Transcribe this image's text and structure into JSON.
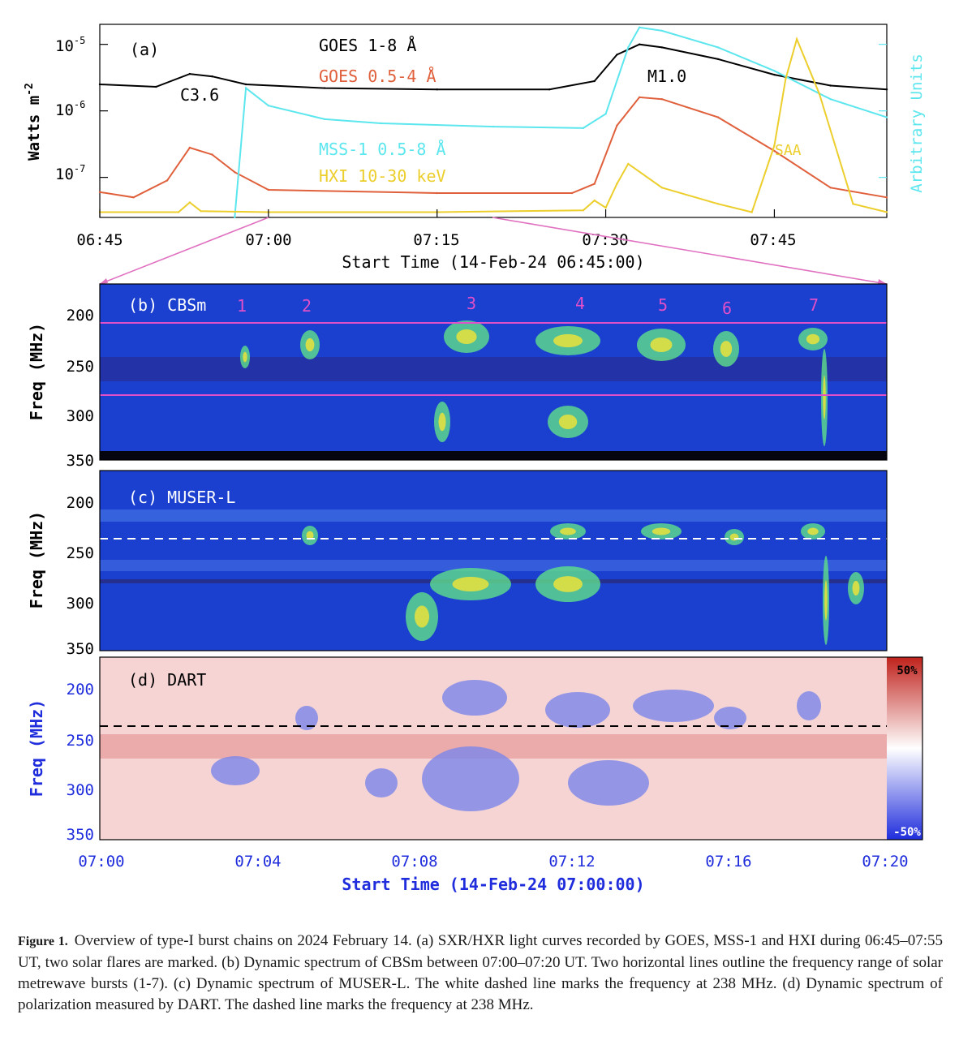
{
  "panel_a": {
    "label": "(a)",
    "ylabel": "Watts m",
    "ylabel_sup": "-2",
    "yright_label": "Arbitrary Units",
    "yticks": [
      {
        "base": "10",
        "exp": "-5"
      },
      {
        "base": "10",
        "exp": "-6"
      },
      {
        "base": "10",
        "exp": "-7"
      }
    ],
    "xticks": [
      "06:45",
      "07:00",
      "07:15",
      "07:30",
      "07:45"
    ],
    "xlabel": "Start Time (14-Feb-24 06:45:00)",
    "legend": [
      {
        "text": "GOES 1-8 Å",
        "color": "#000000"
      },
      {
        "text": "GOES 0.5-4 Å",
        "color": "#e0603c"
      },
      {
        "text": "MSS-1 0.5-8 Å",
        "color": "#5ce6ee"
      },
      {
        "text": "HXI 10-30 keV",
        "color": "#ecce2c"
      }
    ],
    "annotations": {
      "flare1": "C3.6",
      "flare2": "M1.0",
      "saa": "SAA"
    }
  },
  "chart_data": {
    "type": "line",
    "title": "",
    "xlabel": "Start Time (14-Feb-24 06:45:00)",
    "ylabel": "Watts m^-2",
    "ylog": true,
    "ylim": [
      2.5e-08,
      2e-05
    ],
    "xlim": [
      "06:45",
      "07:55"
    ],
    "series": [
      {
        "name": "GOES 1-8 Å",
        "color": "#000000",
        "x": [
          "06:45",
          "06:50",
          "06:53",
          "06:55",
          "06:58",
          "07:05",
          "07:15",
          "07:25",
          "07:29",
          "07:31",
          "07:33",
          "07:35",
          "07:40",
          "07:45",
          "07:50",
          "07:55"
        ],
        "values": [
          2.5e-06,
          2.3e-06,
          3.6e-06,
          3.3e-06,
          2.5e-06,
          2.2e-06,
          2.1e-06,
          2.1e-06,
          2.8e-06,
          7e-06,
          1e-05,
          9e-06,
          6e-06,
          3.5e-06,
          2.4e-06,
          2.1e-06
        ]
      },
      {
        "name": "GOES 0.5-4 Å",
        "color": "#e0603c",
        "x": [
          "06:45",
          "06:48",
          "06:51",
          "06:53",
          "06:55",
          "06:57",
          "07:00",
          "07:15",
          "07:27",
          "07:29",
          "07:31",
          "07:33",
          "07:35",
          "07:40",
          "07:45",
          "07:50",
          "07:55"
        ],
        "values": [
          6e-08,
          5e-08,
          9e-08,
          2.8e-07,
          2.2e-07,
          1.2e-07,
          6.5e-08,
          5.8e-08,
          5.8e-08,
          8e-08,
          6e-07,
          1.6e-06,
          1.5e-06,
          8e-07,
          2.5e-07,
          7e-08,
          5e-08
        ]
      },
      {
        "name": "MSS-1 0.5-8 Å",
        "color": "#5ce6ee",
        "x": [
          "06:57",
          "06:58",
          "07:00",
          "07:05",
          "07:10",
          "07:20",
          "07:28",
          "07:30",
          "07:32",
          "07:33",
          "07:35",
          "07:40",
          "07:45",
          "07:50",
          "07:55"
        ],
        "values": [
          2.5e-08,
          2.2e-06,
          1.2e-06,
          7.5e-07,
          6.5e-07,
          5.8e-07,
          5.5e-07,
          9e-07,
          9e-06,
          1.8e-05,
          1.6e-05,
          9e-06,
          4e-06,
          1.5e-06,
          8e-07
        ]
      },
      {
        "name": "HXI 10-30 keV",
        "color": "#ecce2c",
        "x": [
          "06:45",
          "06:52",
          "06:53",
          "06:54",
          "07:00",
          "07:15",
          "07:28",
          "07:29",
          "07:30",
          "07:31",
          "07:32",
          "07:35",
          "07:40",
          "07:43",
          "07:45",
          "07:46",
          "07:47",
          "07:49",
          "07:52",
          "07:55"
        ],
        "values": [
          3e-08,
          3e-08,
          4.2e-08,
          3.1e-08,
          3e-08,
          3e-08,
          3.2e-08,
          4.5e-08,
          3.5e-08,
          8e-08,
          1.6e-07,
          7e-08,
          4e-08,
          3e-08,
          3e-07,
          3e-06,
          1.2e-05,
          1.8e-06,
          4e-08,
          3e-08
        ]
      }
    ]
  },
  "panel_b": {
    "label": "(b) CBSm",
    "burst_numbers": [
      "1",
      "2",
      "3",
      "4",
      "5",
      "6",
      "7"
    ]
  },
  "panel_c": {
    "label": "(c) MUSER-L"
  },
  "panel_d": {
    "label": "(d) DART",
    "colorbar_top": "50%",
    "colorbar_bottom": "-50%"
  },
  "spectra": {
    "ylabel": "Freq (MHz)",
    "yticks": [
      "200",
      "250",
      "300",
      "350"
    ],
    "xticks": [
      "07:00",
      "07:04",
      "07:08",
      "07:12",
      "07:16",
      "07:20"
    ],
    "xlabel": "Start Time (14-Feb-24 07:00:00)"
  },
  "caption": {
    "label": "Figure 1.",
    "text": "Overview of type-I burst chains on 2024 February 14. (a) SXR/HXR light curves recorded by GOES, MSS-1 and HXI during 06:45–07:55 UT, two solar flares are marked. (b) Dynamic spectrum of CBSm between 07:00–07:20 UT. Two horizontal lines outline the frequency range of solar metrewave bursts (1-7). (c) Dynamic spectrum of MUSER-L. The white dashed line marks the frequency at 238 MHz. (d) Dynamic spectrum of polarization measured by DART. The dashed line marks the frequency at 238 MHz."
  }
}
